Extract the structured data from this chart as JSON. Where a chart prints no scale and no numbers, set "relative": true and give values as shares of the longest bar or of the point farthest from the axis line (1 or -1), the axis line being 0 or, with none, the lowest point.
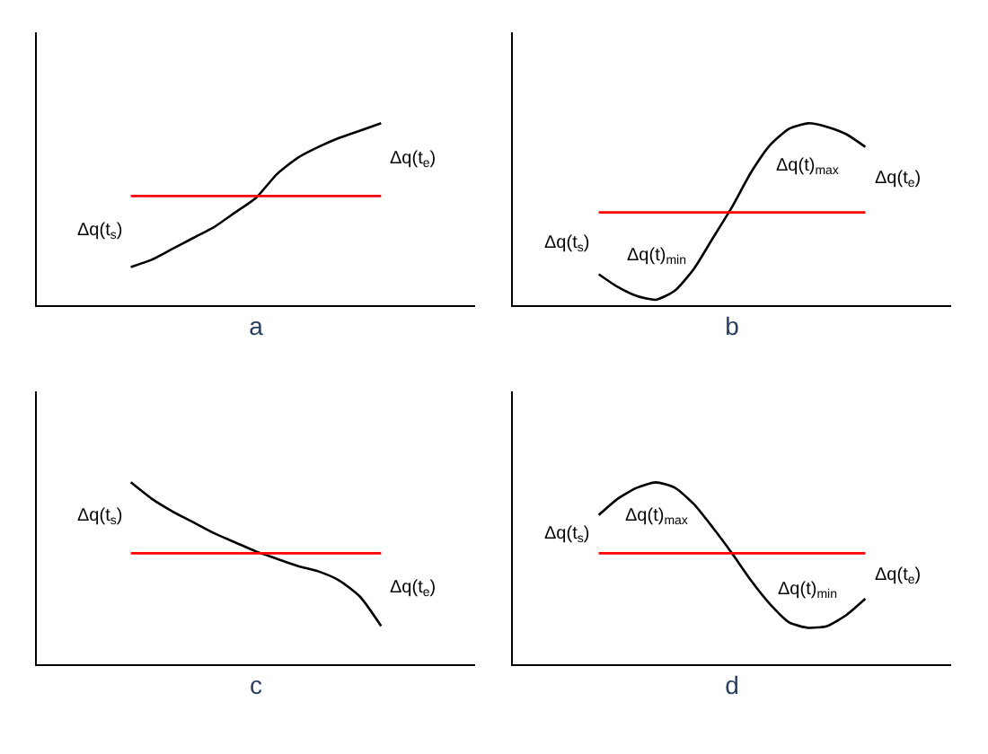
{
  "chart_data": [
    {
      "type": "line",
      "xlabel": "a",
      "relative": true,
      "categories": [
        null,
        null,
        null,
        null,
        null,
        null,
        null,
        null,
        null,
        null,
        null,
        null,
        null
      ],
      "series": [
        {
          "color": "#000000",
          "values": [
            0.21,
            0.25,
            0.31,
            0.37,
            0.43,
            0.51,
            0.59,
            0.72,
            0.81,
            0.87,
            0.92,
            0.96,
            1
          ]
        }
      ],
      "ref_lines": [
        {
          "axis": "y",
          "value": 0.6,
          "color": "#ff0000"
        }
      ],
      "annotations": [
        "Δq(t$_{s}$)",
        "Δq(t$_{e}$)"
      ]
    },
    {
      "type": "line",
      "xlabel": "b",
      "relative": true,
      "categories": [
        null,
        null,
        null,
        null,
        null,
        null,
        null,
        null,
        null,
        null,
        null,
        null,
        null,
        null,
        null
      ],
      "series": [
        {
          "color": "#000000",
          "values": [
            0.17,
            0.1,
            0.05,
            0.03,
            0.08,
            0.2,
            0.37,
            0.54,
            0.73,
            0.88,
            0.97,
            1,
            0.98,
            0.94,
            0.87
          ]
        }
      ],
      "ref_lines": [
        {
          "axis": "y",
          "value": 0.51,
          "color": "#ff0000"
        }
      ],
      "annotations": [
        "Δq(t$_{s}$)",
        "Δq(t)$_{min}$",
        "Δq(t)$_{max}$",
        "Δq(t$_{e}$)"
      ]
    },
    {
      "type": "line",
      "xlabel": "c",
      "relative": true,
      "categories": [
        null,
        null,
        null,
        null,
        null,
        null,
        null,
        null,
        null,
        null,
        null,
        null,
        null
      ],
      "series": [
        {
          "color": "#000000",
          "values": [
            1,
            0.91,
            0.84,
            0.78,
            0.72,
            0.67,
            0.62,
            0.58,
            0.54,
            0.51,
            0.46,
            0.37,
            0.21
          ]
        }
      ],
      "ref_lines": [
        {
          "axis": "y",
          "value": 0.61,
          "color": "#ff0000"
        }
      ],
      "annotations": [
        "Δq(t$_{s}$)",
        "Δq(t$_{e}$)"
      ]
    },
    {
      "type": "line",
      "xlabel": "d",
      "relative": true,
      "categories": [
        null,
        null,
        null,
        null,
        null,
        null,
        null,
        null,
        null,
        null,
        null,
        null,
        null,
        null,
        null
      ],
      "series": [
        {
          "color": "#000000",
          "values": [
            0.82,
            0.91,
            0.97,
            1,
            0.97,
            0.88,
            0.75,
            0.61,
            0.46,
            0.33,
            0.23,
            0.2,
            0.21,
            0.27,
            0.36
          ]
        }
      ],
      "ref_lines": [
        {
          "axis": "y",
          "value": 0.61,
          "color": "#ff0000"
        }
      ],
      "annotations": [
        "Δq(t$_{s}$)",
        "Δq(t)$_{max}$",
        "Δq(t)$_{min}$",
        "Δq(t$_{e}$)"
      ]
    }
  ]
}
